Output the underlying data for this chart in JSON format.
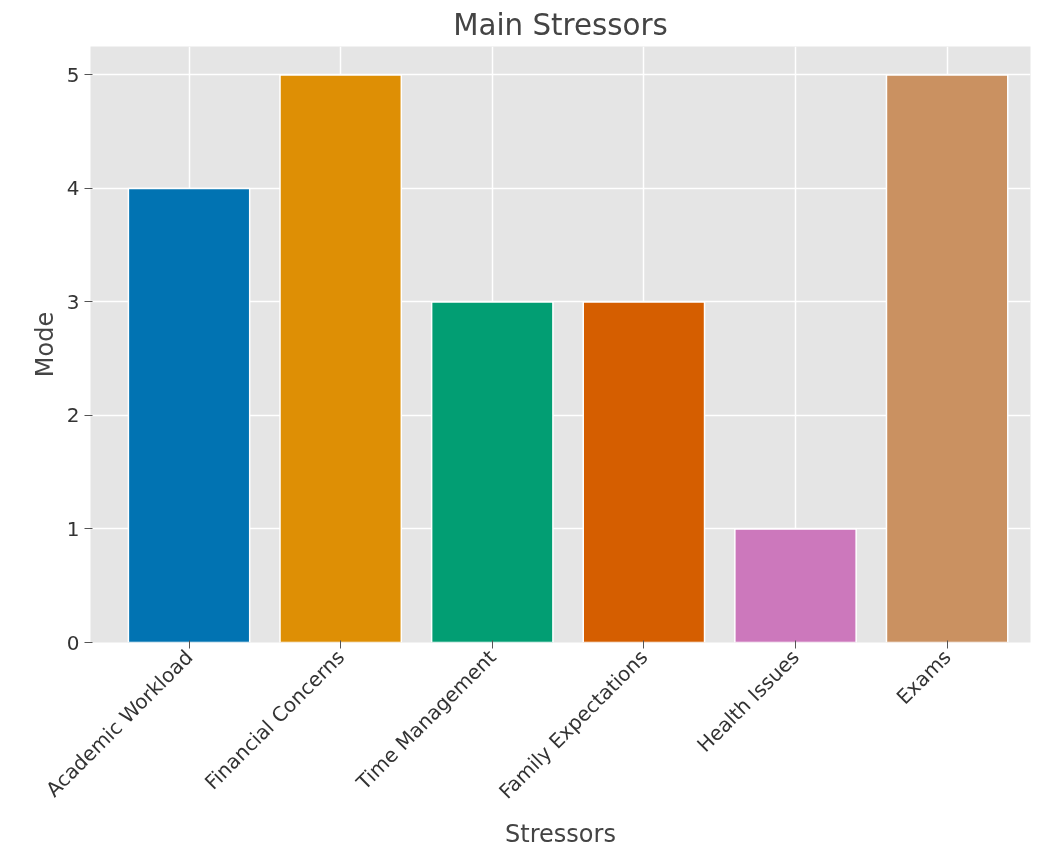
{
  "chart_data": {
    "type": "bar",
    "title": "Main Stressors",
    "xlabel": "Stressors",
    "ylabel": "Mode",
    "categories": [
      "Academic Workload",
      "Financial Concerns",
      "Time Management",
      "Family Expectations",
      "Health Issues",
      "Exams"
    ],
    "values": [
      4,
      5,
      3,
      3,
      1,
      5
    ],
    "colors": [
      "#0173b2",
      "#de8f05",
      "#029e73",
      "#d55e00",
      "#cc78bc",
      "#ca9161"
    ],
    "ylim": [
      0,
      5.25
    ],
    "yticks": [
      0,
      1,
      2,
      3,
      4,
      5
    ],
    "grid": true
  }
}
